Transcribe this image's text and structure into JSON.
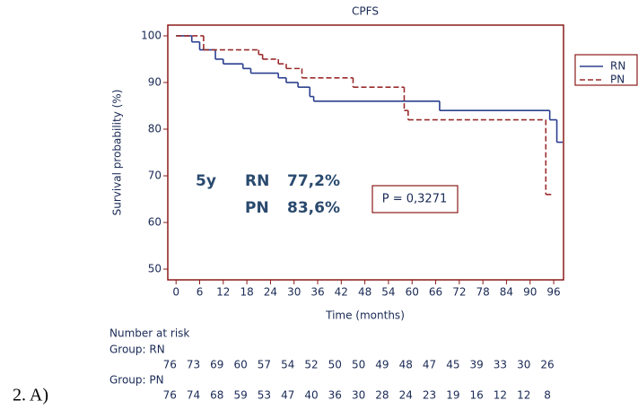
{
  "chart_data": {
    "type": "step",
    "title": "CPFS",
    "x_label": "Time (months)",
    "y_label": "Survival probability (%)",
    "xlim": [
      -2.1,
      98.5
    ],
    "xticks": [
      0,
      6,
      12,
      18,
      24,
      30,
      36,
      42,
      48,
      54,
      60,
      66,
      72,
      78,
      84,
      90,
      96
    ],
    "ylim": [
      47.7,
      102.3
    ],
    "yticks": [
      50,
      60,
      70,
      80,
      90,
      100
    ],
    "series": [
      {
        "name": "RN",
        "color": "#2b3f8f",
        "line_style": "solid",
        "x": [
          0,
          4,
          6,
          10,
          12,
          17,
          19,
          26,
          28,
          31,
          34,
          35,
          67,
          95,
          96.8
        ],
        "values": [
          100,
          98.7,
          97,
          95,
          94,
          93,
          92,
          91,
          90,
          89,
          87,
          86,
          84,
          82,
          77.2
        ]
      },
      {
        "name": "PN",
        "color": "#9b2c2c",
        "line_style": "dashed",
        "x": [
          0,
          7,
          21,
          22,
          26,
          28,
          32,
          45,
          58,
          59,
          94
        ],
        "values": [
          100,
          97,
          96,
          95,
          94,
          93,
          91,
          89,
          84,
          82,
          66
        ]
      }
    ],
    "annotations": [
      "5y",
      "RN",
      "77,2%",
      "PN",
      "83,6%"
    ],
    "p_value_label": "P = 0,3271",
    "risk_table": {
      "title": "Number at risk",
      "groups": [
        {
          "label": "Group: RN",
          "values": [
            76,
            73,
            69,
            60,
            57,
            54,
            52,
            50,
            50,
            49,
            48,
            47,
            45,
            39,
            33,
            30,
            26
          ]
        },
        {
          "label": "Group: PN",
          "values": [
            76,
            74,
            68,
            59,
            53,
            47,
            40,
            36,
            30,
            28,
            24,
            23,
            19,
            16,
            12,
            12,
            8
          ]
        }
      ]
    },
    "figure_label": "2. A)"
  }
}
